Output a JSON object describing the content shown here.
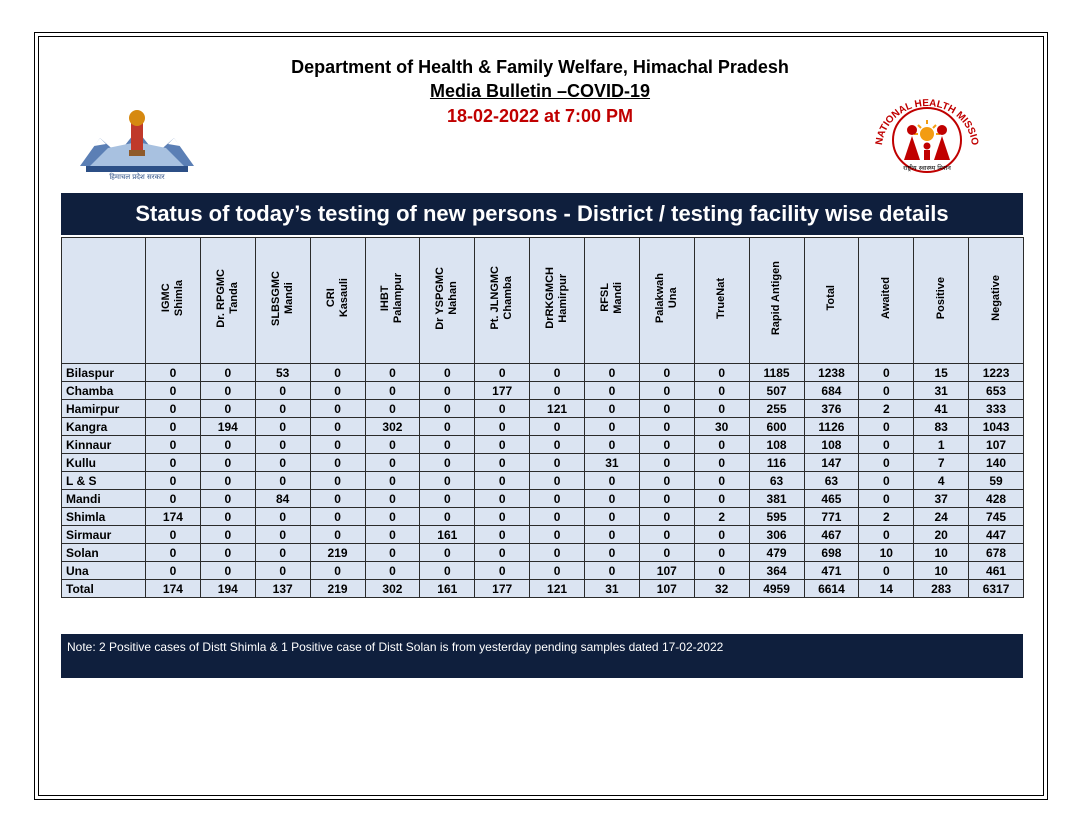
{
  "header": {
    "department": "Department of Health & Family Welfare, Himachal Pradesh",
    "bulletin": "Media Bulletin –COVID-19",
    "datetime": "18-02-2022 at 7:00 PM"
  },
  "logos": {
    "left_caption": "हिमाचल प्रदेश सरकार",
    "right_ring": "NATIONAL HEALTH MISSION",
    "right_caption": "राष्ट्रीय स्वास्थ्य मिशन"
  },
  "banner": "Status of today’s testing of new persons - District / testing facility wise details",
  "table": {
    "columns": [
      "IGMC\nShimla",
      "Dr. RPGMC\nTanda",
      "SLBSGMC\nMandi",
      "CRI\nKasauli",
      "IHBT\nPalampur",
      "Dr YSPGMC\nNahan",
      "Pt. JLNGMC\nChamba",
      "DrRKGMCH\nHamirpur",
      "RFSL\nMandi",
      "Palakwah\nUna",
      "TrueNat",
      "Rapid  Antigen",
      "Total",
      "Awaited",
      "Positive",
      "Negative"
    ],
    "rows": [
      [
        "Bilaspur",
        "0",
        "0",
        "53",
        "0",
        "0",
        "0",
        "0",
        "0",
        "0",
        "0",
        "0",
        "1185",
        "1238",
        "0",
        "15",
        "1223"
      ],
      [
        "Chamba",
        "0",
        "0",
        "0",
        "0",
        "0",
        "0",
        "177",
        "0",
        "0",
        "0",
        "0",
        "507",
        "684",
        "0",
        "31",
        "653"
      ],
      [
        "Hamirpur",
        "0",
        "0",
        "0",
        "0",
        "0",
        "0",
        "0",
        "121",
        "0",
        "0",
        "0",
        "255",
        "376",
        "2",
        "41",
        "333"
      ],
      [
        "Kangra",
        "0",
        "194",
        "0",
        "0",
        "302",
        "0",
        "0",
        "0",
        "0",
        "0",
        "30",
        "600",
        "1126",
        "0",
        "83",
        "1043"
      ],
      [
        "Kinnaur",
        "0",
        "0",
        "0",
        "0",
        "0",
        "0",
        "0",
        "0",
        "0",
        "0",
        "0",
        "108",
        "108",
        "0",
        "1",
        "107"
      ],
      [
        "Kullu",
        "0",
        "0",
        "0",
        "0",
        "0",
        "0",
        "0",
        "0",
        "31",
        "0",
        "0",
        "116",
        "147",
        "0",
        "7",
        "140"
      ],
      [
        "L & S",
        "0",
        "0",
        "0",
        "0",
        "0",
        "0",
        "0",
        "0",
        "0",
        "0",
        "0",
        "63",
        "63",
        "0",
        "4",
        "59"
      ],
      [
        "Mandi",
        "0",
        "0",
        "84",
        "0",
        "0",
        "0",
        "0",
        "0",
        "0",
        "0",
        "0",
        "381",
        "465",
        "0",
        "37",
        "428"
      ],
      [
        "Shimla",
        "174",
        "0",
        "0",
        "0",
        "0",
        "0",
        "0",
        "0",
        "0",
        "0",
        "2",
        "595",
        "771",
        "2",
        "24",
        "745"
      ],
      [
        "Sirmaur",
        "0",
        "0",
        "0",
        "0",
        "0",
        "161",
        "0",
        "0",
        "0",
        "0",
        "0",
        "306",
        "467",
        "0",
        "20",
        "447"
      ],
      [
        "Solan",
        "0",
        "0",
        "0",
        "219",
        "0",
        "0",
        "0",
        "0",
        "0",
        "0",
        "0",
        "479",
        "698",
        "10",
        "10",
        "678"
      ],
      [
        "Una",
        "0",
        "0",
        "0",
        "0",
        "0",
        "0",
        "0",
        "0",
        "0",
        "107",
        "0",
        "364",
        "471",
        "0",
        "10",
        "461"
      ]
    ],
    "total": [
      "Total",
      "174",
      "194",
      "137",
      "219",
      "302",
      "161",
      "177",
      "121",
      "31",
      "107",
      "32",
      "4959",
      "6614",
      "14",
      "283",
      "6317"
    ]
  },
  "note": "Note: 2 Positive cases of Distt Shimla & 1 Positive case of Distt Solan is from yesterday pending samples dated 17-02-2022"
}
